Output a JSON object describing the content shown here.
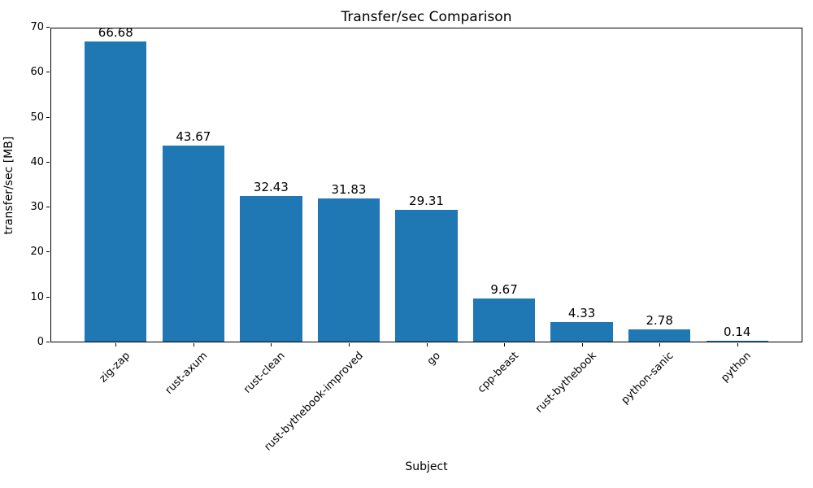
{
  "chart_data": {
    "type": "bar",
    "title": "Transfer/sec Comparison",
    "xlabel": "Subject",
    "ylabel": "transfer/sec [MB]",
    "categories": [
      "zig-zap",
      "rust-axum",
      "rust-clean",
      "rust-bythebook-improved",
      "go",
      "cpp-beast",
      "rust-bythebook",
      "python-sanic",
      "python"
    ],
    "values": [
      66.68,
      43.67,
      32.43,
      31.83,
      29.31,
      9.67,
      4.33,
      2.78,
      0.14
    ],
    "value_labels": [
      "66.68",
      "43.67",
      "32.43",
      "31.83",
      "29.31",
      "9.67",
      "4.33",
      "2.78",
      "0.14"
    ],
    "ylim": [
      0,
      70
    ],
    "yticks": [
      0,
      10,
      20,
      30,
      40,
      50,
      60,
      70
    ],
    "x_tick_rotation_deg": 45,
    "grid": false,
    "legend_position": "none",
    "bar_color": "#1f77b4",
    "axis_color": "#000000",
    "text_color": "#000000",
    "background_color": "#ffffff"
  }
}
